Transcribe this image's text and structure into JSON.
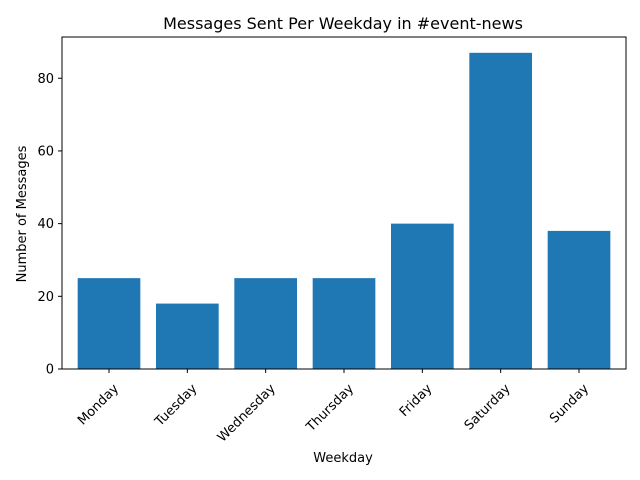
{
  "chart_data": {
    "type": "bar",
    "title": "Messages Sent Per Weekday in #event-news",
    "xlabel": "Weekday",
    "ylabel": "Number of Messages",
    "categories": [
      "Monday",
      "Tuesday",
      "Wednesday",
      "Thursday",
      "Friday",
      "Saturday",
      "Sunday"
    ],
    "values": [
      25,
      18,
      25,
      25,
      40,
      87,
      38
    ],
    "ylim": [
      0,
      91.35
    ],
    "yticks": [
      0,
      20,
      40,
      60,
      80
    ],
    "grid": false,
    "bar_color": "#1f77b4"
  }
}
